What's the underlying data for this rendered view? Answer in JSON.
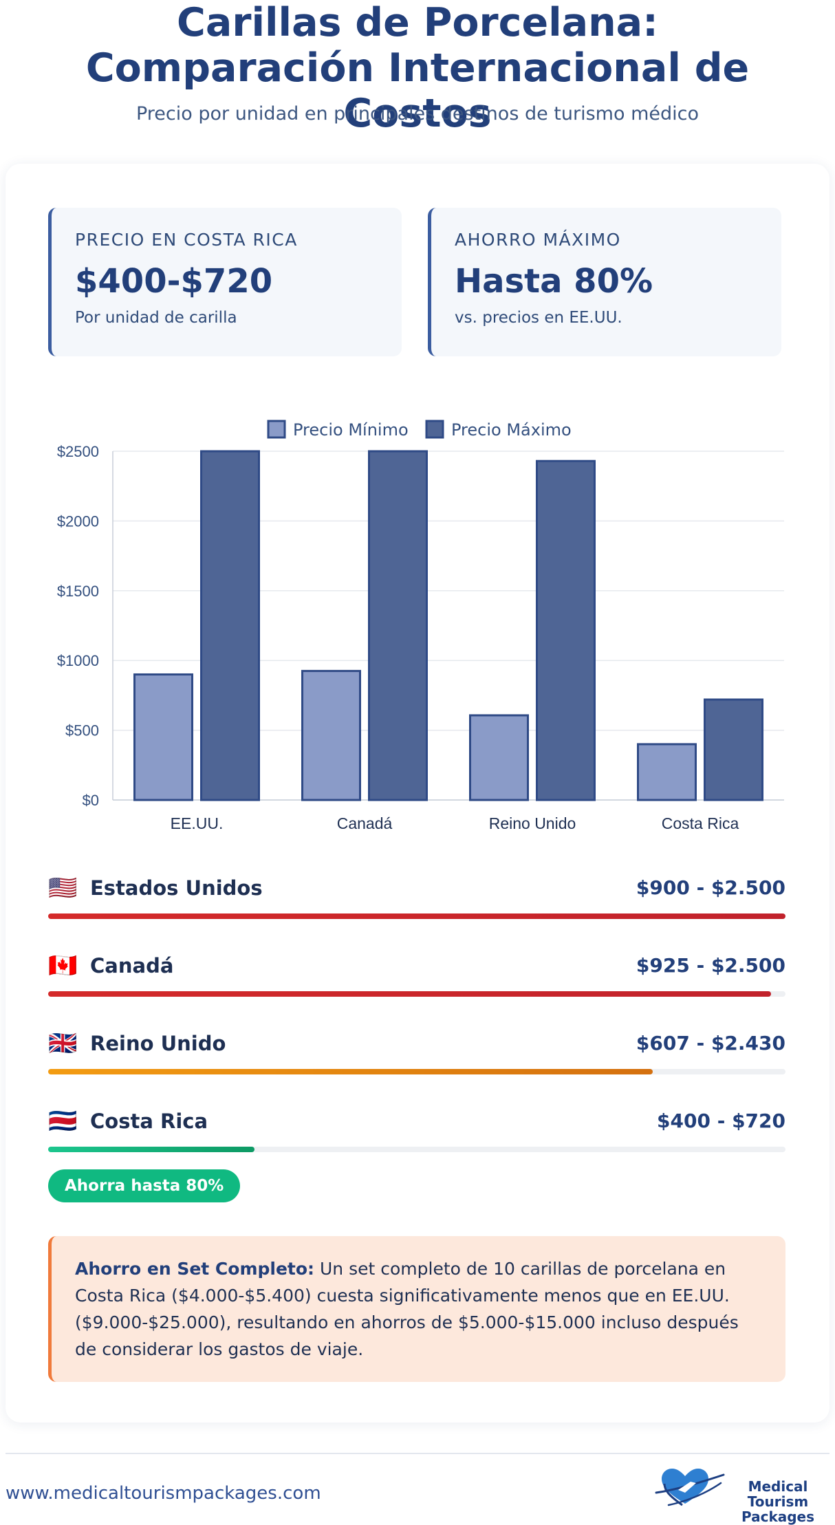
{
  "header": {
    "title": "Carillas de Porcelana: Comparación Internacional de Costos",
    "subtitle": "Precio por unidad en principales destinos de turismo médico"
  },
  "stats": [
    {
      "label": "PRECIO EN COSTA RICA",
      "value": "$400-$720",
      "note": "Por unidad de carilla"
    },
    {
      "label": "AHORRO MÁXIMO",
      "value": "Hasta 80%",
      "note": "vs. precios en EE.UU."
    }
  ],
  "chart_data": {
    "type": "bar",
    "categories": [
      "EE.UU.",
      "Canadá",
      "Reino Unido",
      "Costa Rica"
    ],
    "series": [
      {
        "name": "Precio Mínimo",
        "values": [
          900,
          925,
          607,
          400
        ],
        "color": "#8a9bc8"
      },
      {
        "name": "Precio Máximo",
        "values": [
          2500,
          2500,
          2430,
          720
        ],
        "color": "#4f6595"
      }
    ],
    "ylim": [
      0,
      2500
    ],
    "yticks": [
      0,
      500,
      1000,
      1500,
      2000,
      2500
    ],
    "ytick_labels": [
      "$0",
      "$500",
      "$1000",
      "$1500",
      "$2000",
      "$2500"
    ],
    "legend": "top-center",
    "grid": true,
    "xlabel": "",
    "ylabel": ""
  },
  "price_rows": [
    {
      "flag": "🇺🇸",
      "country": "Estados Unidos",
      "range": "$900 - $2.500",
      "share": 1.0,
      "color_start": "#d42a2a",
      "color_end": "#c1222b"
    },
    {
      "flag": "🇨🇦",
      "country": "Canadá",
      "range": "$925 - $2.500",
      "share": 0.98,
      "color_start": "#d42a2a",
      "color_end": "#c1222b"
    },
    {
      "flag": "🇬🇧",
      "country": "Reino Unido",
      "range": "$607 - $2.430",
      "share": 0.82,
      "color_start": "#f39c12",
      "color_end": "#d4700f"
    },
    {
      "flag": "🇨🇷",
      "country": "Costa Rica",
      "range": "$400 - $720",
      "share": 0.28,
      "color_start": "#1cc68e",
      "color_end": "#0d9a64"
    }
  ],
  "badge": "Ahorra hasta 80%",
  "note": {
    "lead": "Ahorro en Set Completo:",
    "text": "Un set completo de 10 carillas de porcelana en Costa Rica ($4.000-$5.400) cuesta significativamente menos que en EE.UU. ($9.000-$25.000), resultando en ahorros de $5.000-$15.000 incluso después de considerar los gastos de viaje."
  },
  "footer": {
    "website": "www.medicaltourismpackages.com",
    "logo_line1": "Medical Tourism",
    "logo_line2": "Packages",
    "logo_icon": "heart-plane-icon"
  }
}
